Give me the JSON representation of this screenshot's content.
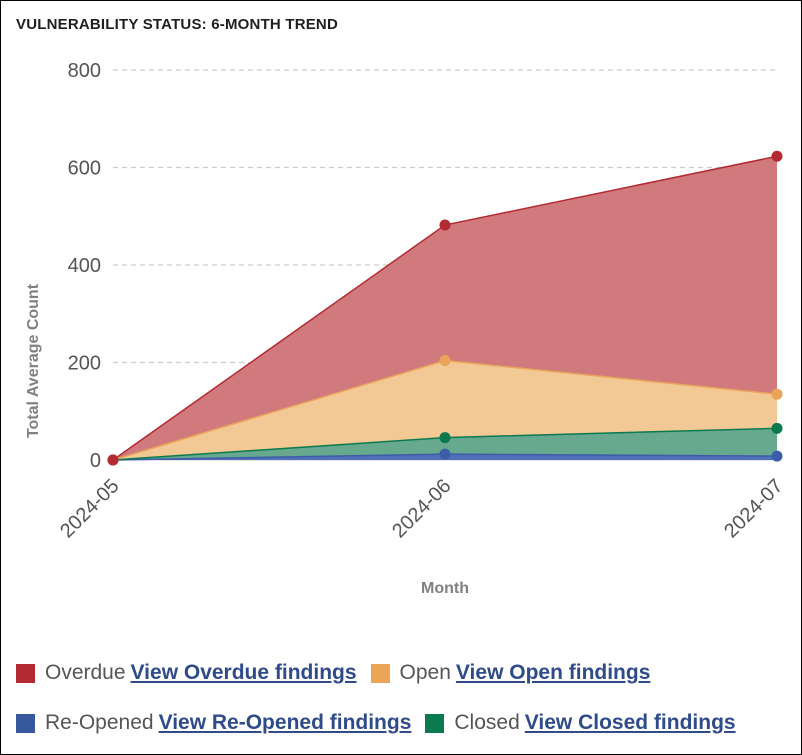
{
  "title": "VULNERABILITY STATUS: 6-MONTH TREND",
  "chart_data": {
    "type": "area",
    "stacked": true,
    "xlabel": "Month",
    "ylabel": "Total Average Count",
    "categories": [
      "2024-05",
      "2024-06",
      "2024-07"
    ],
    "ylim": [
      0,
      800
    ],
    "yticks": [
      0,
      200,
      400,
      600,
      800
    ],
    "grid": true,
    "legend_position": "bottom",
    "series": [
      {
        "name": "Re-Opened",
        "values": [
          0,
          12,
          8
        ],
        "color": "#3e5da8",
        "fill": "#5070b8"
      },
      {
        "name": "Closed",
        "values": [
          0,
          34,
          57
        ],
        "color": "#0b7a4f",
        "fill": "#66a98e"
      },
      {
        "name": "Open",
        "values": [
          0,
          158,
          70
        ],
        "color": "#e9a45a",
        "fill": "#f2c894"
      },
      {
        "name": "Overdue",
        "values": [
          0,
          278,
          488
        ],
        "color": "#b42a32",
        "fill": "#d07a7d"
      }
    ]
  },
  "legend": [
    {
      "label": "Overdue",
      "link": "View Overdue findings",
      "color": "#b42a32"
    },
    {
      "label": "Open",
      "link": "View Open findings",
      "color": "#eca457"
    },
    {
      "label": "Re-Opened",
      "link": "View Re-Opened findings",
      "color": "#37589c"
    },
    {
      "label": "Closed",
      "link": "View Closed findings",
      "color": "#0b7a4f"
    }
  ]
}
